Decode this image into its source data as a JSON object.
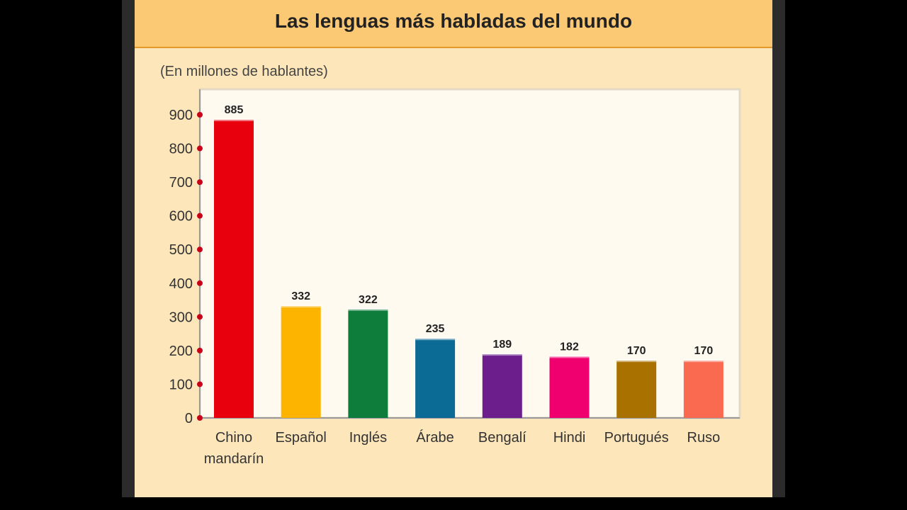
{
  "chart_data": {
    "type": "bar",
    "title": "Las lenguas más habladas del mundo",
    "subtitle": "(En millones de hablantes)",
    "categories": [
      [
        "Chino",
        "mandarín"
      ],
      [
        "Español"
      ],
      [
        "Inglés"
      ],
      [
        "Árabe"
      ],
      [
        "Bengalí"
      ],
      [
        "Hindi"
      ],
      [
        "Portugués"
      ],
      [
        "Ruso"
      ]
    ],
    "values": [
      885,
      332,
      322,
      235,
      189,
      182,
      170,
      170
    ],
    "value_labels": [
      "885",
      "332",
      "322",
      "235",
      "189",
      "182",
      "170",
      "170"
    ],
    "colors": [
      "#e8000c",
      "#fdb400",
      "#0e7c3a",
      "#0b6b94",
      "#6b1e8c",
      "#f0006e",
      "#a87100",
      "#f96a50"
    ],
    "yticks": [
      "0",
      "100",
      "200",
      "300",
      "400",
      "500",
      "600",
      "700",
      "800",
      "900"
    ],
    "ylim": [
      0,
      900
    ],
    "grid": false,
    "legend": "none"
  }
}
